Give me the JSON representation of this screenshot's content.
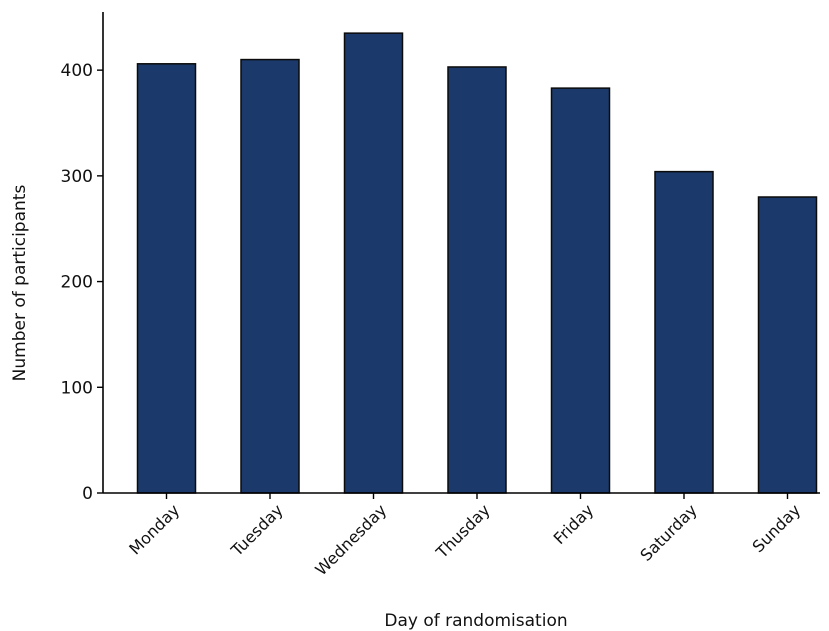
{
  "chart_data": {
    "type": "bar",
    "title": "",
    "xlabel": "Day of randomisation",
    "ylabel": "Number of participants",
    "categories": [
      "Monday",
      "Tuesday",
      "Wednesday",
      "Thusday",
      "Friday",
      "Saturday",
      "Sunday"
    ],
    "values": [
      406,
      410,
      435,
      403,
      383,
      304,
      280
    ],
    "ylim": [
      0,
      455
    ],
    "yticks": [
      0,
      100,
      200,
      300,
      400
    ],
    "grid": false,
    "legend": "none",
    "bar_color": "#1b3a6b",
    "bar_edge_color": "#0b0b0b"
  }
}
